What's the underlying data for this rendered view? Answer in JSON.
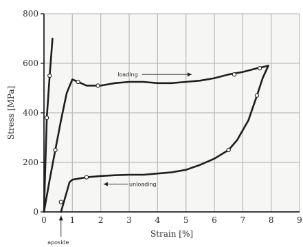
{
  "chart_data": {
    "type": "line",
    "title": "",
    "xlabel": "Strain [%]",
    "ylabel": "Stress [MPa]",
    "xlim": [
      0,
      9
    ],
    "ylim": [
      0,
      800
    ],
    "x_ticks": [
      0,
      1,
      2,
      3,
      4,
      5,
      6,
      7,
      8,
      9
    ],
    "y_ticks": [
      0,
      200,
      400,
      600,
      800
    ],
    "grid": true,
    "x_tick_labels": [
      "0",
      "1",
      "2",
      "3",
      "4",
      "5",
      "6",
      "7",
      "8",
      "9"
    ],
    "y_tick_labels": [
      "0",
      "200",
      "400",
      "600",
      "800"
    ],
    "series": [
      {
        "key": "steep",
        "x": [
          0,
          0.1,
          0.2,
          0.3
        ],
        "y": [
          0,
          380,
          550,
          700
        ],
        "markers": [
          [
            0.1,
            380
          ],
          [
            0.2,
            550
          ]
        ]
      },
      {
        "name": "loading",
        "x": [
          0,
          0.2,
          0.4,
          0.6,
          0.8,
          1.0,
          1.2,
          1.5,
          2.0,
          2.5,
          3.0,
          3.5,
          4.0,
          4.5,
          5.0,
          5.5,
          6.0,
          6.5,
          7.0,
          7.5,
          7.9
        ],
        "y": [
          0,
          130,
          250,
          370,
          480,
          535,
          525,
          510,
          510,
          520,
          525,
          525,
          520,
          520,
          525,
          530,
          540,
          555,
          565,
          580,
          590
        ],
        "markers": [
          [
            0.4,
            250
          ],
          [
            1.2,
            525
          ],
          [
            1.9,
            510
          ],
          [
            6.7,
            555
          ],
          [
            7.6,
            580
          ]
        ]
      },
      {
        "name": "unloading",
        "x": [
          7.9,
          7.7,
          7.5,
          7.2,
          6.8,
          6.5,
          6.0,
          5.5,
          5.0,
          4.5,
          4.0,
          3.5,
          3.0,
          2.5,
          2.0,
          1.5,
          1.0,
          0.9,
          0.8,
          0.7,
          0.6
        ],
        "y": [
          590,
          540,
          470,
          370,
          290,
          250,
          215,
          190,
          170,
          160,
          155,
          150,
          150,
          148,
          145,
          140,
          130,
          120,
          80,
          40,
          0
        ],
        "markers": [
          [
            7.5,
            470
          ],
          [
            6.5,
            250
          ],
          [
            1.5,
            140
          ],
          [
            0.6,
            40
          ]
        ]
      }
    ],
    "annotations": [
      {
        "text": "loading",
        "x": 3.5,
        "y": 555,
        "arrow_to": [
          5.2,
          555
        ]
      },
      {
        "text": "unloading",
        "x": 3.6,
        "y": 112,
        "arrow_from": [
          3.0,
          112
        ],
        "arrow_to": [
          2.1,
          112
        ]
      },
      {
        "text": "aposide",
        "x": 0.4,
        "y": -120,
        "arrow_to": [
          0.6,
          -15
        ]
      }
    ],
    "colors": {
      "line": "#1e1e1e",
      "grid": "#bdbdbd",
      "axis": "#262626",
      "marker_fill": "#ffffff",
      "background": "#f6f6f4"
    }
  }
}
